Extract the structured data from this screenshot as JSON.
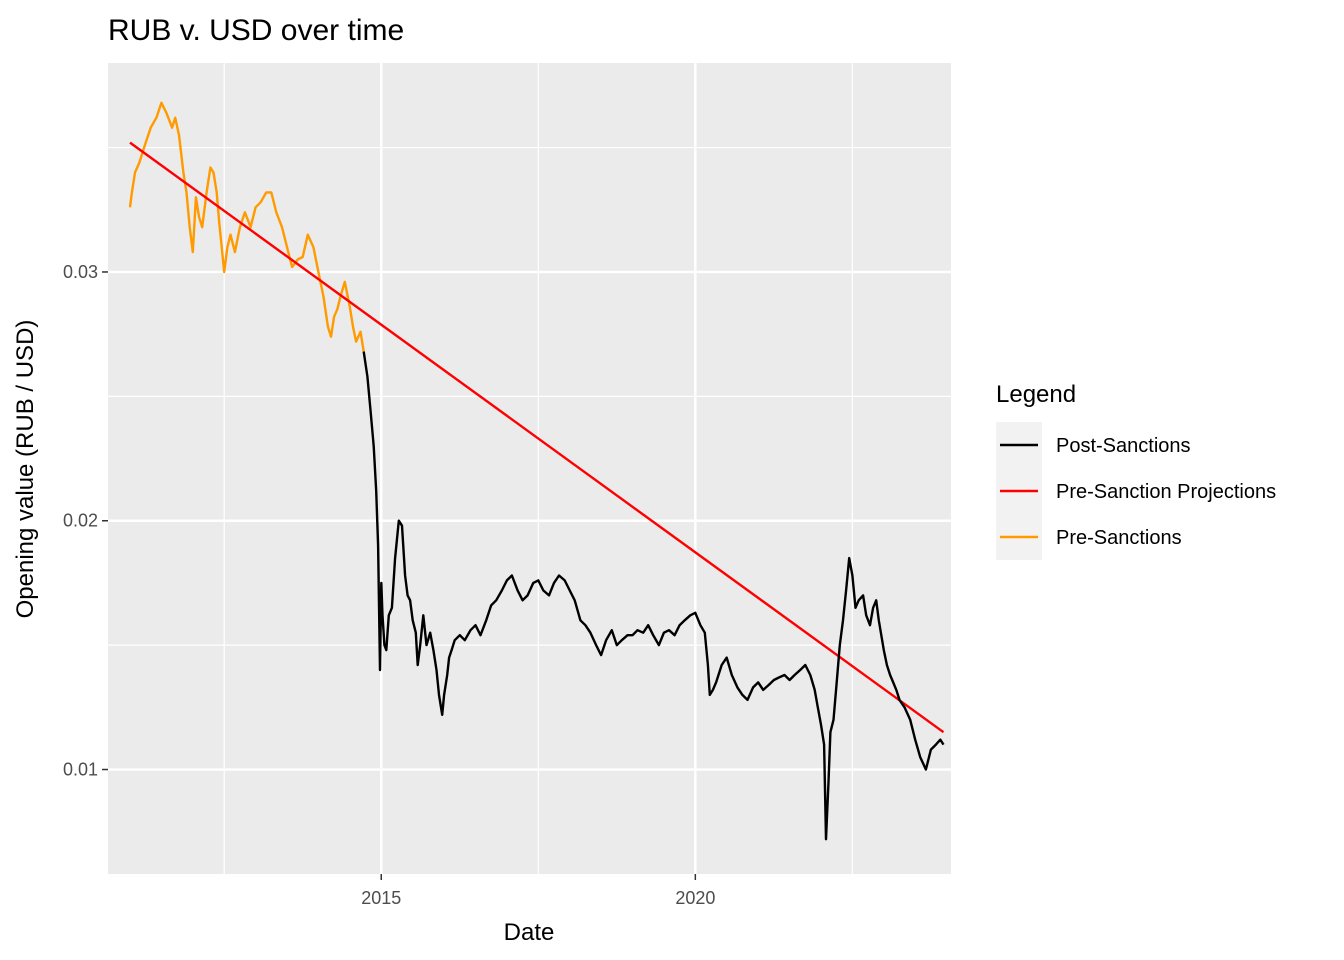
{
  "chart_data": {
    "type": "line",
    "title": "RUB v. USD over time",
    "xlabel": "Date",
    "ylabel": "Opening value (RUB / USD)",
    "xlim": [
      2010.65,
      2024.07
    ],
    "ylim": [
      0.0058,
      0.0384
    ],
    "x_ticks": [
      {
        "value": 2015,
        "label": "2015"
      },
      {
        "value": 2020,
        "label": "2020"
      }
    ],
    "x_minor_ticks": [
      2012.5,
      2017.5,
      2022.5
    ],
    "y_ticks": [
      {
        "value": 0.01,
        "label": "0.01"
      },
      {
        "value": 0.02,
        "label": "0.02"
      },
      {
        "value": 0.03,
        "label": "0.03"
      }
    ],
    "y_minor_ticks": [
      0.015,
      0.025,
      0.035
    ],
    "grid": true,
    "legend": {
      "title": "Legend",
      "position": "right",
      "entries": [
        {
          "label": "Post-Sanctions",
          "color": "#000000"
        },
        {
          "label": "Pre-Sanction Projections",
          "color": "#ff0000"
        },
        {
          "label": "Pre-Sanctions",
          "color": "#ff9a00"
        }
      ]
    },
    "series": [
      {
        "legend_ref": 2,
        "color": "#ff9a00",
        "x": [
          2011.0,
          2011.03,
          2011.08,
          2011.15,
          2011.25,
          2011.33,
          2011.42,
          2011.5,
          2011.58,
          2011.67,
          2011.72,
          2011.78,
          2011.85,
          2011.9,
          2011.95,
          2012.0,
          2012.05,
          2012.1,
          2012.15,
          2012.22,
          2012.28,
          2012.33,
          2012.38,
          2012.42,
          2012.5,
          2012.55,
          2012.6,
          2012.67,
          2012.75,
          2012.83,
          2012.92,
          2013.0,
          2013.08,
          2013.17,
          2013.25,
          2013.33,
          2013.42,
          2013.5,
          2013.58,
          2013.67,
          2013.75,
          2013.83,
          2013.92,
          2014.0,
          2014.08,
          2014.15,
          2014.2,
          2014.25,
          2014.3,
          2014.35,
          2014.42,
          2014.5,
          2014.55,
          2014.6,
          2014.67,
          2014.72
        ],
        "y": [
          0.0326,
          0.0332,
          0.034,
          0.0344,
          0.0352,
          0.0358,
          0.0362,
          0.0368,
          0.0364,
          0.0358,
          0.0362,
          0.0355,
          0.034,
          0.0332,
          0.0318,
          0.0308,
          0.033,
          0.0322,
          0.0318,
          0.0332,
          0.0342,
          0.034,
          0.0332,
          0.032,
          0.03,
          0.031,
          0.0315,
          0.0308,
          0.0318,
          0.0324,
          0.0318,
          0.0326,
          0.0328,
          0.0332,
          0.0332,
          0.0324,
          0.0318,
          0.031,
          0.0302,
          0.0305,
          0.0306,
          0.0315,
          0.031,
          0.03,
          0.029,
          0.0278,
          0.0274,
          0.0282,
          0.0285,
          0.029,
          0.0296,
          0.0286,
          0.0278,
          0.0272,
          0.0276,
          0.0268
        ]
      },
      {
        "legend_ref": 1,
        "color": "#ff0000",
        "x": [
          2011.0,
          2023.95
        ],
        "y": [
          0.0352,
          0.0115
        ]
      },
      {
        "legend_ref": 0,
        "color": "#000000",
        "x": [
          2014.72,
          2014.78,
          2014.83,
          2014.88,
          2014.92,
          2014.95,
          2014.98,
          2015.0,
          2015.02,
          2015.05,
          2015.08,
          2015.12,
          2015.17,
          2015.22,
          2015.28,
          2015.33,
          2015.38,
          2015.42,
          2015.46,
          2015.5,
          2015.55,
          2015.58,
          2015.62,
          2015.67,
          2015.72,
          2015.78,
          2015.83,
          2015.88,
          2015.92,
          2015.97,
          2016.0,
          2016.05,
          2016.08,
          2016.12,
          2016.17,
          2016.25,
          2016.33,
          2016.42,
          2016.5,
          2016.58,
          2016.67,
          2016.75,
          2016.83,
          2016.92,
          2017.0,
          2017.08,
          2017.17,
          2017.25,
          2017.33,
          2017.42,
          2017.5,
          2017.58,
          2017.67,
          2017.75,
          2017.83,
          2017.92,
          2018.0,
          2018.08,
          2018.17,
          2018.25,
          2018.33,
          2018.42,
          2018.5,
          2018.58,
          2018.67,
          2018.75,
          2018.83,
          2018.92,
          2019.0,
          2019.08,
          2019.17,
          2019.25,
          2019.33,
          2019.42,
          2019.5,
          2019.58,
          2019.67,
          2019.75,
          2019.83,
          2019.92,
          2020.0,
          2020.08,
          2020.15,
          2020.2,
          2020.23,
          2020.28,
          2020.33,
          2020.42,
          2020.5,
          2020.58,
          2020.67,
          2020.75,
          2020.83,
          2020.92,
          2021.0,
          2021.08,
          2021.17,
          2021.25,
          2021.33,
          2021.42,
          2021.5,
          2021.58,
          2021.67,
          2021.75,
          2021.83,
          2021.9,
          2021.95,
          2022.0,
          2022.05,
          2022.08,
          2022.12,
          2022.15,
          2022.2,
          2022.25,
          2022.3,
          2022.35,
          2022.4,
          2022.45,
          2022.5,
          2022.55,
          2022.6,
          2022.67,
          2022.72,
          2022.78,
          2022.83,
          2022.88,
          2022.92,
          2023.0,
          2023.05,
          2023.1,
          2023.15,
          2023.2,
          2023.25,
          2023.33,
          2023.42,
          2023.5,
          2023.58,
          2023.67,
          2023.75,
          2023.83,
          2023.9,
          2023.95
        ],
        "y": [
          0.0268,
          0.0258,
          0.0244,
          0.023,
          0.0212,
          0.019,
          0.014,
          0.0175,
          0.0162,
          0.015,
          0.0148,
          0.0162,
          0.0165,
          0.0185,
          0.02,
          0.0198,
          0.0178,
          0.017,
          0.0168,
          0.016,
          0.0155,
          0.0142,
          0.015,
          0.0162,
          0.015,
          0.0155,
          0.0148,
          0.014,
          0.013,
          0.0122,
          0.013,
          0.0138,
          0.0145,
          0.0148,
          0.0152,
          0.0154,
          0.0152,
          0.0156,
          0.0158,
          0.0154,
          0.016,
          0.0166,
          0.0168,
          0.0172,
          0.0176,
          0.0178,
          0.0172,
          0.0168,
          0.017,
          0.0175,
          0.0176,
          0.0172,
          0.017,
          0.0175,
          0.0178,
          0.0176,
          0.0172,
          0.0168,
          0.016,
          0.0158,
          0.0155,
          0.015,
          0.0146,
          0.0152,
          0.0156,
          0.015,
          0.0152,
          0.0154,
          0.0154,
          0.0156,
          0.0155,
          0.0158,
          0.0154,
          0.015,
          0.0155,
          0.0156,
          0.0154,
          0.0158,
          0.016,
          0.0162,
          0.0163,
          0.0158,
          0.0155,
          0.0142,
          0.013,
          0.0132,
          0.0135,
          0.0142,
          0.0145,
          0.0138,
          0.0133,
          0.013,
          0.0128,
          0.0133,
          0.0135,
          0.0132,
          0.0134,
          0.0136,
          0.0137,
          0.0138,
          0.0136,
          0.0138,
          0.014,
          0.0142,
          0.0138,
          0.0132,
          0.0125,
          0.0118,
          0.011,
          0.0072,
          0.0095,
          0.0115,
          0.012,
          0.0135,
          0.015,
          0.016,
          0.0172,
          0.0185,
          0.0178,
          0.0165,
          0.0168,
          0.017,
          0.0162,
          0.0158,
          0.0165,
          0.0168,
          0.016,
          0.0148,
          0.0142,
          0.0138,
          0.0135,
          0.0132,
          0.0128,
          0.0125,
          0.012,
          0.0112,
          0.0105,
          0.01,
          0.0108,
          0.011,
          0.0112,
          0.011
        ]
      }
    ]
  }
}
